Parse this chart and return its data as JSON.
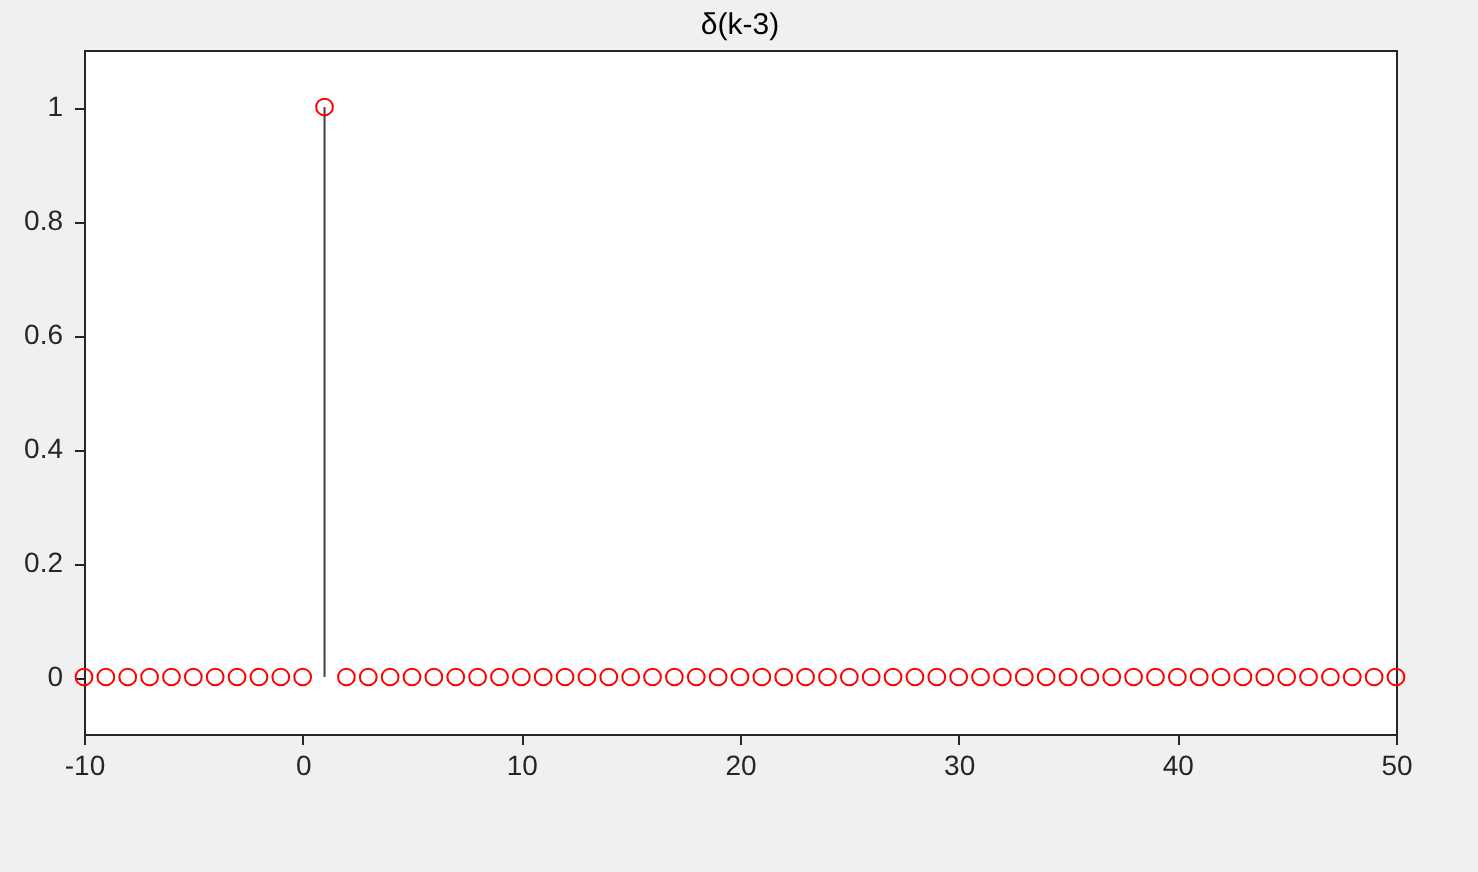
{
  "chart_data": {
    "type": "lollipop",
    "title": "δ(k-3)",
    "x": [
      -10,
      -9,
      -8,
      -7,
      -6,
      -5,
      -4,
      -3,
      -2,
      -1,
      0,
      1,
      2,
      3,
      4,
      5,
      6,
      7,
      8,
      9,
      10,
      11,
      12,
      13,
      14,
      15,
      16,
      17,
      18,
      19,
      20,
      21,
      22,
      23,
      24,
      25,
      26,
      27,
      28,
      29,
      30,
      31,
      32,
      33,
      34,
      35,
      36,
      37,
      38,
      39,
      40,
      41,
      42,
      43,
      44,
      45,
      46,
      47,
      48,
      49,
      50
    ],
    "series": [
      {
        "color": "#ff0000",
        "values": [
          0,
          0,
          0,
          0,
          0,
          0,
          0,
          0,
          0,
          0,
          0,
          1,
          0,
          0,
          0,
          0,
          0,
          0,
          0,
          0,
          0,
          0,
          0,
          0,
          0,
          0,
          0,
          0,
          0,
          0,
          0,
          0,
          0,
          0,
          0,
          0,
          0,
          0,
          0,
          0,
          0,
          0,
          0,
          0,
          0,
          0,
          0,
          0,
          0,
          0,
          0,
          0,
          0,
          0,
          0,
          0,
          0,
          0,
          0,
          0,
          0
        ]
      }
    ],
    "xlim": [
      -10,
      50
    ],
    "xticks": [
      -10,
      0,
      10,
      20,
      30,
      40,
      50
    ],
    "ylim": [
      -0.1,
      1.1
    ],
    "yticks": [
      0,
      0.2,
      0.4,
      0.6,
      0.8,
      1
    ],
    "marker": "circle"
  }
}
